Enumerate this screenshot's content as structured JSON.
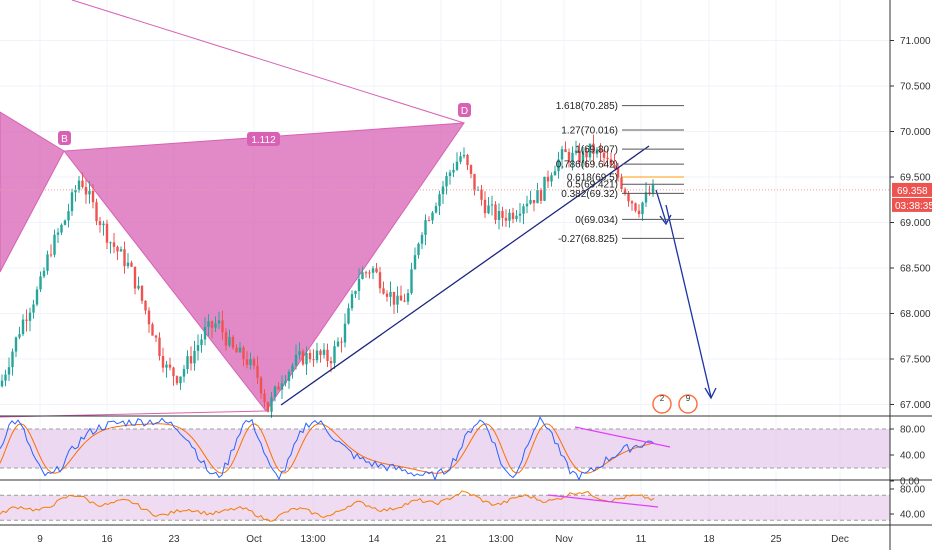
{
  "chart_data": [
    {
      "type": "candlestick",
      "panel": "price",
      "ylim": [
        66.8,
        71.5
      ],
      "y_ticks": [
        "71.000",
        "70.500",
        "70.000",
        "69.500",
        "69.000",
        "68.500",
        "68.000",
        "67.500",
        "67.000"
      ],
      "x_tick_labels": [
        "9",
        "16",
        "23",
        "Oct",
        "13:00",
        "14",
        "21",
        "13:00",
        "Nov",
        "11",
        "18",
        "25",
        "Dec"
      ],
      "last_price_label": "69.358",
      "countdown_label": "03:38:35",
      "harmonic_pattern": {
        "points": [
          "B",
          "D"
        ],
        "ratio_label": "1.112",
        "color": "#d861b4"
      },
      "fibonacci": [
        {
          "label": "1.618(70.285)",
          "value": 70.285
        },
        {
          "label": "1.27(70.016)",
          "value": 70.016
        },
        {
          "label": "1(69.807)",
          "value": 69.807
        },
        {
          "label": "0.786(69.642)",
          "value": 69.642
        },
        {
          "label": "0.618(69.5)",
          "value": 69.5
        },
        {
          "label": "0.5(69.421)",
          "value": 69.421
        },
        {
          "label": "0.382(69.32)",
          "value": 69.32
        },
        {
          "label": "0(69.034)",
          "value": 69.034
        },
        {
          "label": "-0.27(68.825)",
          "value": 68.825
        }
      ],
      "event_badges": [
        "2",
        "9"
      ],
      "colors": {
        "up": "#26a69a",
        "down": "#ef5350",
        "trendline": "#1a237e",
        "projection": "#1a33a8"
      }
    },
    {
      "type": "line",
      "panel": "stochastic",
      "ylim": [
        -5,
        100
      ],
      "y_ticks": [
        "80.00",
        "40.00",
        "0.00"
      ],
      "band": [
        20,
        80
      ],
      "colors": {
        "k": "#2962ff",
        "d": "#ff6d00",
        "band": "#e1bee7",
        "divergence": "#e040fb"
      }
    },
    {
      "type": "line",
      "panel": "rsi",
      "ylim": [
        20,
        85
      ],
      "y_ticks": [
        "80.00",
        "40.00"
      ],
      "band": [
        30,
        70
      ],
      "colors": {
        "line": "#f57c00",
        "band": "#e1bee7",
        "divergence": "#e040fb"
      }
    }
  ]
}
